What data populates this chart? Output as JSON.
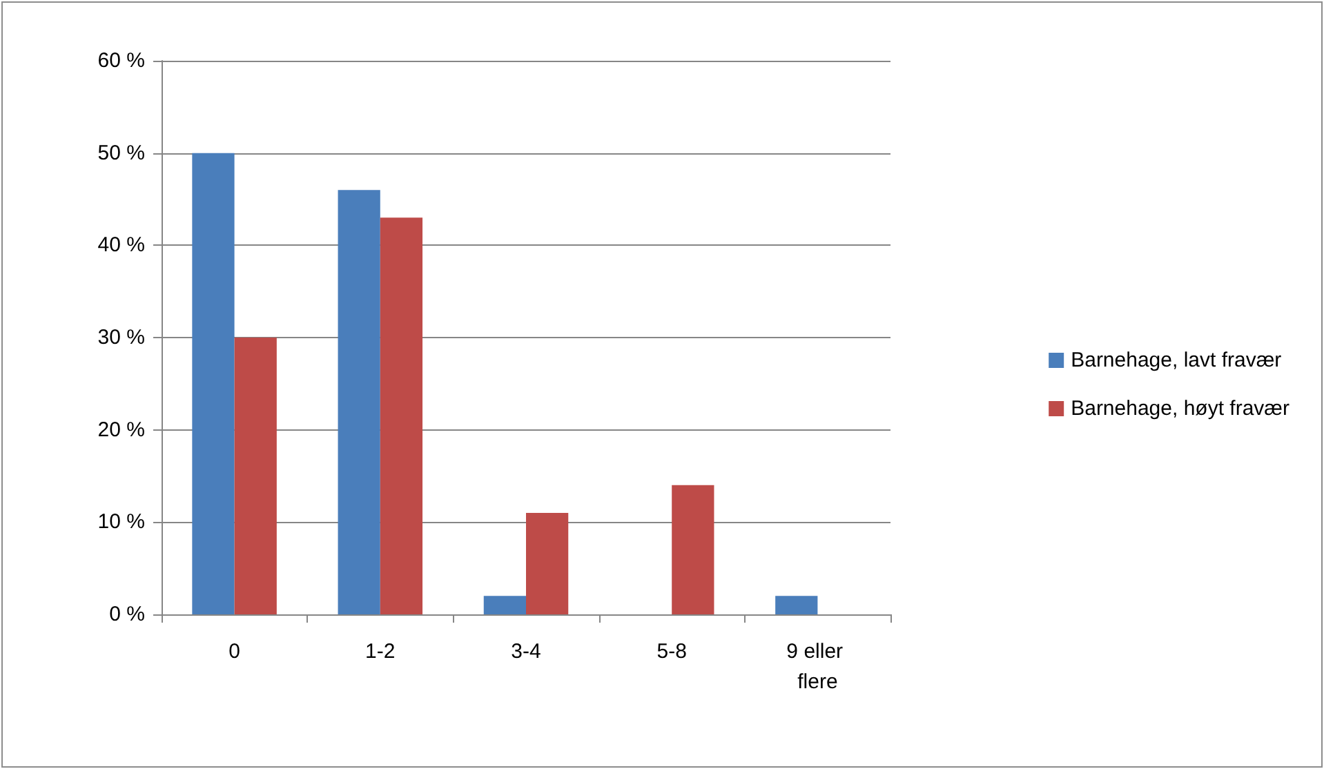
{
  "chart_data": {
    "type": "bar",
    "categories": [
      "0",
      "1-2",
      "3-4",
      "5-8",
      "9 eller flere"
    ],
    "series": [
      {
        "name": "Barnehage, lavt fravær",
        "color": "#4a7ebb",
        "values": [
          50,
          46,
          2,
          0,
          2
        ]
      },
      {
        "name": "Barnehage, høyt fravær",
        "color": "#be4b48",
        "values": [
          30,
          43,
          11,
          14,
          0
        ]
      }
    ],
    "ylim": [
      0,
      60
    ],
    "yticks": [
      {
        "value": 0,
        "label": "0 %"
      },
      {
        "value": 10,
        "label": "10 %"
      },
      {
        "value": 20,
        "label": "20 %"
      },
      {
        "value": 30,
        "label": "30 %"
      },
      {
        "value": 40,
        "label": "40 %"
      },
      {
        "value": 50,
        "label": "50 %"
      },
      {
        "value": 60,
        "label": "60 %"
      }
    ],
    "grid": "y",
    "legend": "right"
  }
}
